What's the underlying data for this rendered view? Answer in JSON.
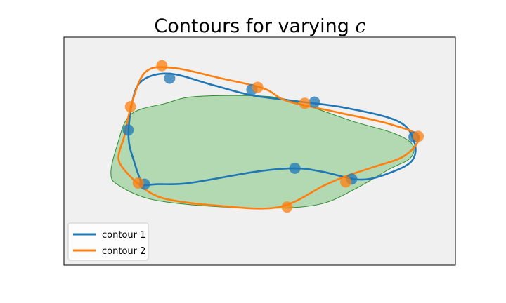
{
  "chart_data": {
    "type": "line",
    "title": "Contours for varying ",
    "title_variable": "c",
    "xlabel": "",
    "ylabel": "",
    "axes_ticks": "none",
    "grid": false,
    "legend_placement": "lower-left",
    "colors": {
      "plot_background": "#f0f0f0",
      "region_fill": "#b3d9b3",
      "region_edge": "#2e8b2e",
      "contour_1": "#1f77b4",
      "contour_2": "#ff7f0e",
      "overlap_marker": "#1a7a6e"
    },
    "xlim": [
      0,
      1
    ],
    "ylim": [
      0,
      1
    ],
    "region": {
      "name": "",
      "points": [
        [
          0.135,
          0.52
        ],
        [
          0.17,
          0.66
        ],
        [
          0.26,
          0.71
        ],
        [
          0.34,
          0.74
        ],
        [
          0.52,
          0.74
        ],
        [
          0.62,
          0.7
        ],
        [
          0.74,
          0.63
        ],
        [
          0.84,
          0.58
        ],
        [
          0.89,
          0.53
        ],
        [
          0.885,
          0.47
        ],
        [
          0.83,
          0.42
        ],
        [
          0.75,
          0.34
        ],
        [
          0.66,
          0.27
        ],
        [
          0.54,
          0.25
        ],
        [
          0.36,
          0.26
        ],
        [
          0.22,
          0.29
        ],
        [
          0.14,
          0.35
        ],
        [
          0.12,
          0.4
        ]
      ]
    },
    "series": [
      {
        "name": "contour 1",
        "color": "#1f77b4",
        "curve": [
          [
            0.2,
            0.35
          ],
          [
            0.18,
            0.45
          ],
          [
            0.165,
            0.56
          ],
          [
            0.175,
            0.72
          ],
          [
            0.2,
            0.81
          ],
          [
            0.27,
            0.84
          ],
          [
            0.38,
            0.79
          ],
          [
            0.48,
            0.745
          ],
          [
            0.59,
            0.72
          ],
          [
            0.72,
            0.69
          ],
          [
            0.855,
            0.63
          ],
          [
            0.895,
            0.54
          ],
          [
            0.89,
            0.46
          ],
          [
            0.84,
            0.41
          ],
          [
            0.76,
            0.375
          ],
          [
            0.66,
            0.41
          ],
          [
            0.59,
            0.425
          ],
          [
            0.49,
            0.41
          ],
          [
            0.32,
            0.36
          ],
          [
            0.24,
            0.355
          ],
          [
            0.2,
            0.35
          ]
        ],
        "points": [
          [
            0.27,
            0.82
          ],
          [
            0.48,
            0.77
          ],
          [
            0.64,
            0.715
          ],
          [
            0.894,
            0.562
          ],
          [
            0.735,
            0.378
          ],
          [
            0.59,
            0.425
          ],
          [
            0.206,
            0.355
          ],
          [
            0.164,
            0.593
          ]
        ]
      },
      {
        "name": "contour 2",
        "color": "#ff7f0e",
        "curve": [
          [
            0.18,
            0.37
          ],
          [
            0.14,
            0.46
          ],
          [
            0.155,
            0.57
          ],
          [
            0.175,
            0.72
          ],
          [
            0.21,
            0.85
          ],
          [
            0.28,
            0.865
          ],
          [
            0.4,
            0.82
          ],
          [
            0.51,
            0.775
          ],
          [
            0.57,
            0.72
          ],
          [
            0.7,
            0.67
          ],
          [
            0.83,
            0.62
          ],
          [
            0.905,
            0.565
          ],
          [
            0.87,
            0.48
          ],
          [
            0.79,
            0.43
          ],
          [
            0.72,
            0.39
          ],
          [
            0.665,
            0.35
          ],
          [
            0.55,
            0.255
          ],
          [
            0.4,
            0.26
          ],
          [
            0.25,
            0.295
          ],
          [
            0.18,
            0.37
          ]
        ],
        "points": [
          [
            0.25,
            0.875
          ],
          [
            0.495,
            0.78
          ],
          [
            0.615,
            0.71
          ],
          [
            0.905,
            0.565
          ],
          [
            0.72,
            0.365
          ],
          [
            0.57,
            0.255
          ],
          [
            0.19,
            0.36
          ],
          [
            0.17,
            0.695
          ]
        ]
      }
    ]
  }
}
